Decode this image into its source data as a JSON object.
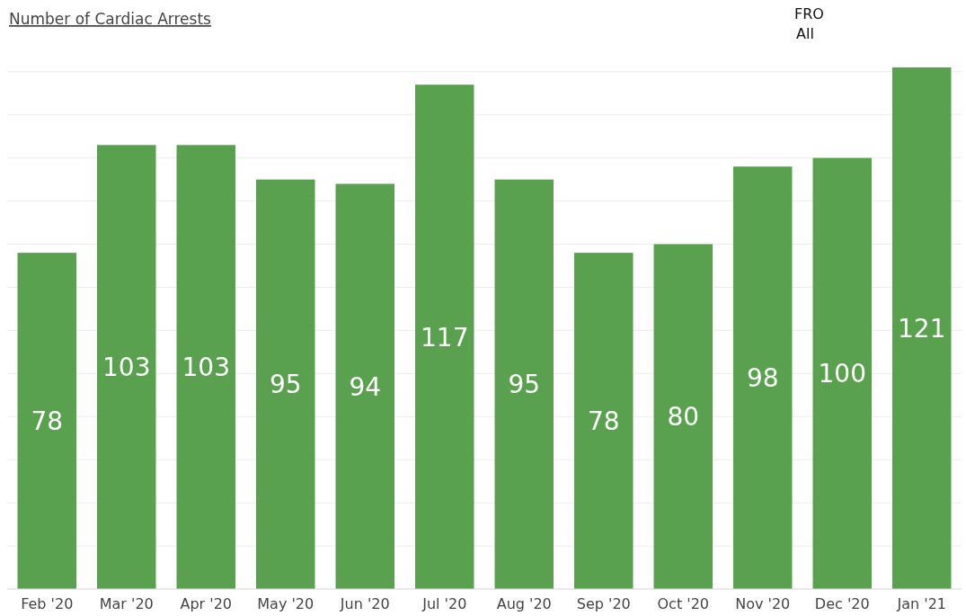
{
  "chart_data": {
    "type": "bar",
    "title": "Number of Cardiac Arrests",
    "annotations": [
      "FRO",
      "All"
    ],
    "categories": [
      "Feb '20",
      "Mar '20",
      "Apr '20",
      "May '20",
      "Jun '20",
      "Jul '20",
      "Aug '20",
      "Sep '20",
      "Oct '20",
      "Nov '20",
      "Dec '20",
      "Jan '21"
    ],
    "values": [
      78,
      103,
      103,
      95,
      94,
      117,
      95,
      78,
      80,
      98,
      100,
      121
    ],
    "color": "#59a14f",
    "data_labels": true,
    "yticks": [
      {
        "value": 0,
        "label": null
      },
      {
        "value": 10,
        "label": null
      },
      {
        "value": 20,
        "label": null
      },
      {
        "value": 30,
        "label": null
      },
      {
        "value": 40,
        "label": null
      },
      {
        "value": 50,
        "label": null
      },
      {
        "value": 60,
        "label": null
      },
      {
        "value": 70,
        "label": null
      },
      {
        "value": 80,
        "label": null
      },
      {
        "value": 90,
        "label": null
      },
      {
        "value": 100,
        "label": null
      },
      {
        "value": 110,
        "label": null
      },
      {
        "value": 120,
        "label": null
      }
    ],
    "grid": "y",
    "tick_labels": "x"
  }
}
